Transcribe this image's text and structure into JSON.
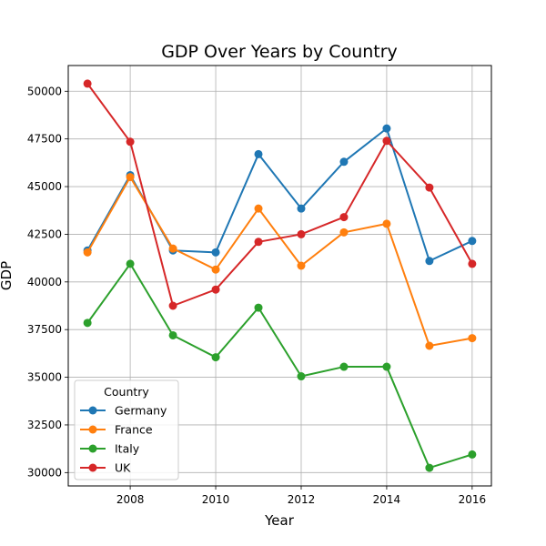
{
  "chart_data": {
    "type": "line",
    "title": "GDP Over Years by Country",
    "xlabel": "Year",
    "ylabel": "GDP",
    "x": [
      2007,
      2008,
      2009,
      2010,
      2011,
      2012,
      2013,
      2014,
      2015,
      2016
    ],
    "xlim": [
      2006.55,
      2016.45
    ],
    "ylim": [
      29300,
      51350
    ],
    "xticks": [
      2008,
      2010,
      2012,
      2014,
      2016
    ],
    "yticks": [
      30000,
      32500,
      35000,
      37500,
      40000,
      42500,
      45000,
      47500,
      50000
    ],
    "grid": true,
    "legend": {
      "title": "Country",
      "placement": "lower-left"
    },
    "series": [
      {
        "name": "Germany",
        "color": "#1f77b4",
        "values": [
          41650,
          45600,
          41650,
          41550,
          46700,
          43850,
          46300,
          48050,
          41100,
          42150
        ]
      },
      {
        "name": "France",
        "color": "#ff7f0e",
        "values": [
          41550,
          45500,
          41750,
          40650,
          43850,
          40850,
          42600,
          43050,
          36650,
          37050
        ]
      },
      {
        "name": "Italy",
        "color": "#2ca02c",
        "values": [
          37850,
          40950,
          37200,
          36050,
          38650,
          35050,
          35550,
          35550,
          30250,
          30950
        ]
      },
      {
        "name": "UK",
        "color": "#d62728",
        "values": [
          50400,
          47350,
          38750,
          39600,
          42100,
          42500,
          43400,
          47400,
          44950,
          40950
        ]
      }
    ]
  }
}
